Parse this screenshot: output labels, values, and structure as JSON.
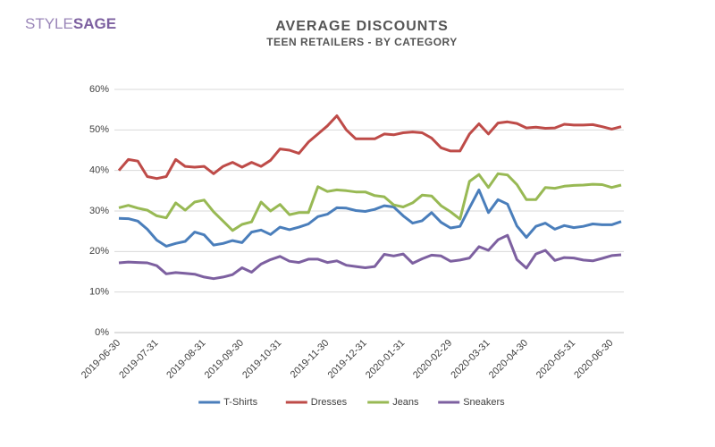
{
  "header": {
    "logo": [
      "STYLE",
      "SAGE"
    ]
  },
  "chart_data": {
    "type": "line",
    "title": "AVERAGE DISCOUNTS",
    "subtitle": "TEEN RETAILERS - BY CATEGORY",
    "categories": [
      "2019-06-30",
      null,
      null,
      null,
      "2019-07-31",
      null,
      null,
      null,
      null,
      "2019-08-31",
      null,
      null,
      null,
      "2019-09-30",
      null,
      null,
      null,
      "2019-10-31",
      null,
      null,
      null,
      null,
      "2019-11-30",
      null,
      null,
      null,
      "2019-12-31",
      null,
      null,
      null,
      "2020-01-31",
      null,
      null,
      null,
      null,
      "2020-02-29",
      null,
      null,
      null,
      "2020-03-31",
      null,
      null,
      null,
      "2020-04-30",
      null,
      null,
      null,
      null,
      "2020-05-31",
      null,
      null,
      null,
      "2020-06-30",
      null
    ],
    "series": [
      {
        "name": "T-Shirts",
        "color": "#4a7ebb",
        "values": [
          28.2,
          28.1,
          27.5,
          25.5,
          22.8,
          21.3,
          22,
          22.5,
          24.8,
          24.1,
          21.6,
          22,
          22.7,
          22.2,
          24.8,
          25.3,
          24.2,
          26,
          25.4,
          26,
          26.8,
          28.6,
          29.2,
          30.8,
          30.7,
          30.1,
          29.9,
          30.4,
          31.3,
          31,
          28.8,
          27,
          27.6,
          29.6,
          27.2,
          25.8,
          26.2,
          30.8,
          35.2,
          29.6,
          32.8,
          31.7,
          26.3,
          23.5,
          26.2,
          27,
          25.5,
          26.4,
          25.9,
          26.2,
          26.8,
          26.6,
          26.6,
          27.4
        ]
      },
      {
        "name": "Dresses",
        "color": "#be4b48",
        "values": [
          40,
          42.7,
          42.3,
          38.5,
          38,
          38.5,
          42.7,
          41,
          40.8,
          41,
          39.2,
          41,
          42,
          40.8,
          42,
          41,
          42.5,
          45.3,
          45,
          44.2,
          47,
          49,
          51,
          53.5,
          50,
          47.8,
          47.8,
          47.8,
          49,
          48.8,
          49.3,
          49.5,
          49.3,
          48,
          45.6,
          44.8,
          44.8,
          49,
          51.5,
          49,
          51.7,
          52,
          51.6,
          50.5,
          50.7,
          50.4,
          50.5,
          51.4,
          51.2,
          51.2,
          51.3,
          50.8,
          50.2,
          50.8
        ]
      },
      {
        "name": "Jeans",
        "color": "#98b954",
        "values": [
          30.8,
          31.4,
          30.7,
          30.2,
          28.8,
          28.3,
          32,
          30.2,
          32.2,
          32.7,
          29.8,
          27.5,
          25.2,
          26.7,
          27.3,
          32.2,
          30,
          31.6,
          29.1,
          29.6,
          29.6,
          36,
          34.8,
          35.2,
          35,
          34.7,
          34.7,
          33.8,
          33.5,
          31.5,
          31,
          32,
          33.9,
          33.7,
          31.3,
          29.8,
          28,
          37.3,
          39,
          35.8,
          39.2,
          38.9,
          36.5,
          32.8,
          32.8,
          35.8,
          35.6,
          36.1,
          36.3,
          36.4,
          36.6,
          36.5,
          35.8,
          36.4
        ]
      },
      {
        "name": "Sneakers",
        "color": "#7d60a0",
        "values": [
          17.2,
          17.4,
          17.3,
          17.2,
          16.5,
          14.5,
          14.8,
          14.6,
          14.4,
          13.7,
          13.3,
          13.7,
          14.3,
          16,
          14.9,
          16.9,
          18,
          18.8,
          17.6,
          17.3,
          18.1,
          18.1,
          17.3,
          17.7,
          16.6,
          16.3,
          16,
          16.3,
          19.3,
          18.9,
          19.4,
          17.1,
          18.2,
          19.1,
          18.9,
          17.6,
          17.9,
          18.4,
          21.2,
          20.3,
          22.9,
          24,
          18,
          15.9,
          19.4,
          20.3,
          17.8,
          18.5,
          18.4,
          17.9,
          17.7,
          18.3,
          19,
          19.2
        ]
      }
    ],
    "ylim": [
      0,
      60
    ],
    "yticks": [
      {
        "value": 0,
        "label": "0%"
      },
      {
        "value": 10,
        "label": "10%"
      },
      {
        "value": 20,
        "label": "20%"
      },
      {
        "value": 30,
        "label": "30%"
      },
      {
        "value": 40,
        "label": "40%"
      },
      {
        "value": 50,
        "label": "50%"
      },
      {
        "value": 60,
        "label": "60%"
      }
    ],
    "grid": true,
    "legend": "bottom"
  }
}
